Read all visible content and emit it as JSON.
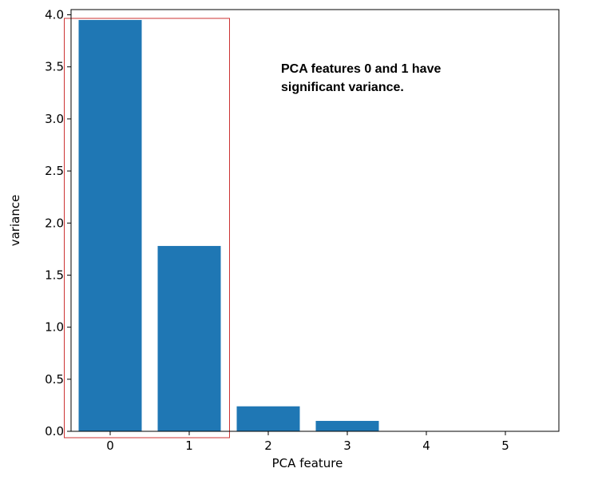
{
  "chart_data": {
    "type": "bar",
    "categories": [
      "0",
      "1",
      "2",
      "3",
      "4",
      "5"
    ],
    "values": [
      3.95,
      1.78,
      0.24,
      0.1,
      0.0,
      0.0
    ],
    "xlabel": "PCA feature",
    "ylabel": "variance",
    "ylim": [
      0,
      4.05
    ],
    "yticks": [
      "0.0",
      "0.5",
      "1.0",
      "1.5",
      "2.0",
      "2.5",
      "3.0",
      "3.5",
      "4.0"
    ],
    "grid": false,
    "bar_color": "#1f77b4",
    "annotation": {
      "line1": "PCA features 0 and 1 have",
      "line2": "significant variance."
    },
    "highlight": {
      "categories": [
        "0",
        "1"
      ],
      "color": "#cc3333"
    }
  }
}
